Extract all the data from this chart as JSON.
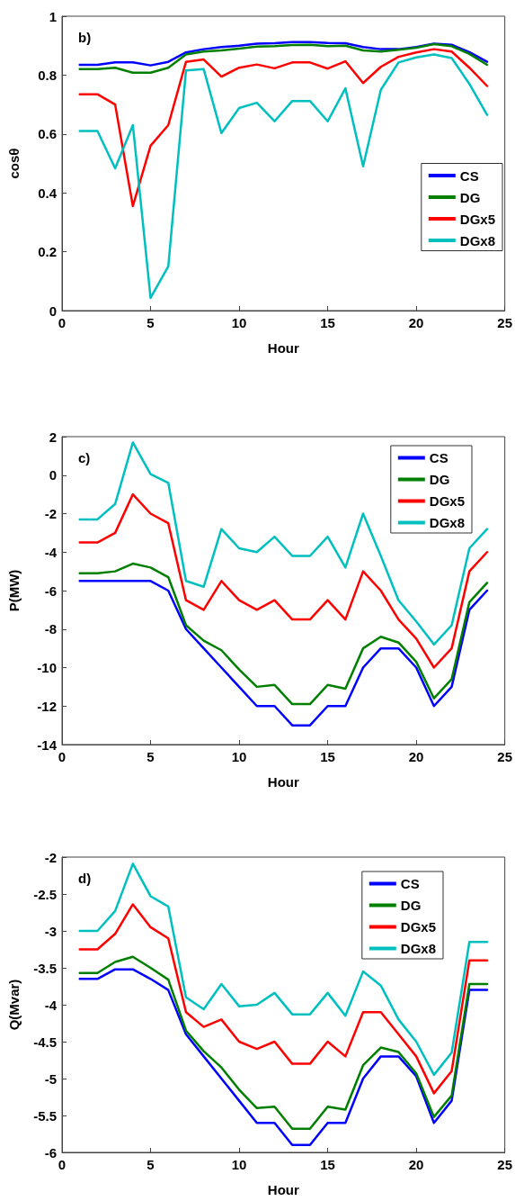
{
  "chart_data": [
    {
      "type": "line",
      "annotations": [
        "b)"
      ],
      "xlabel": "Hour",
      "ylabel": "cosθ",
      "x": [
        1,
        2,
        3,
        4,
        5,
        6,
        7,
        8,
        9,
        10,
        11,
        12,
        13,
        14,
        15,
        16,
        17,
        18,
        19,
        20,
        21,
        22,
        23,
        24
      ],
      "xlim": [
        0,
        25
      ],
      "xticks": [
        0,
        5,
        10,
        15,
        20,
        25
      ],
      "ylim": [
        0,
        1
      ],
      "yticks": [
        0,
        0.2,
        0.4,
        0.6,
        0.8,
        1
      ],
      "grid": false,
      "legend": "right",
      "marker": "none",
      "line_style": "solid",
      "series": [
        {
          "name": "CS",
          "color": "#0000ff",
          "values": [
            0.835,
            0.835,
            0.843,
            0.843,
            0.833,
            0.845,
            0.877,
            0.888,
            0.895,
            0.9,
            0.907,
            0.908,
            0.912,
            0.912,
            0.909,
            0.908,
            0.895,
            0.888,
            0.888,
            0.895,
            0.907,
            0.903,
            0.878,
            0.845
          ]
        },
        {
          "name": "DG",
          "color": "#007f00",
          "values": [
            0.82,
            0.82,
            0.825,
            0.808,
            0.808,
            0.825,
            0.87,
            0.88,
            0.884,
            0.89,
            0.897,
            0.898,
            0.902,
            0.903,
            0.898,
            0.9,
            0.884,
            0.88,
            0.886,
            0.893,
            0.905,
            0.898,
            0.872,
            0.835
          ]
        },
        {
          "name": "DGx5",
          "color": "#ff0000",
          "values": [
            0.735,
            0.735,
            0.7,
            0.355,
            0.56,
            0.63,
            0.845,
            0.853,
            0.795,
            0.825,
            0.836,
            0.823,
            0.843,
            0.843,
            0.822,
            0.847,
            0.773,
            0.828,
            0.862,
            0.877,
            0.888,
            0.88,
            0.825,
            0.763
          ]
        },
        {
          "name": "DGx8",
          "color": "#00bfbf",
          "values": [
            0.61,
            0.61,
            0.483,
            0.63,
            0.043,
            0.15,
            0.816,
            0.82,
            0.603,
            0.688,
            0.706,
            0.643,
            0.712,
            0.712,
            0.643,
            0.755,
            0.49,
            0.75,
            0.843,
            0.86,
            0.87,
            0.858,
            0.77,
            0.665
          ]
        }
      ]
    },
    {
      "type": "line",
      "annotations": [
        "c)"
      ],
      "xlabel": "Hour",
      "ylabel": "P(MW)",
      "x": [
        1,
        2,
        3,
        4,
        5,
        6,
        7,
        8,
        9,
        10,
        11,
        12,
        13,
        14,
        15,
        16,
        17,
        18,
        19,
        20,
        21,
        22,
        23,
        24
      ],
      "xlim": [
        0,
        25
      ],
      "xticks": [
        0,
        5,
        10,
        15,
        20,
        25
      ],
      "ylim": [
        -14,
        2
      ],
      "yticks": [
        -14,
        -12,
        -10,
        -8,
        -6,
        -4,
        -2,
        0,
        2
      ],
      "grid": false,
      "legend": "top right",
      "marker": "none",
      "line_style": "solid",
      "series": [
        {
          "name": "CS",
          "color": "#0000ff",
          "values": [
            -5.5,
            -5.5,
            -5.5,
            -5.5,
            -5.5,
            -6,
            -8,
            -9,
            -10,
            -11,
            -12,
            -12,
            -13,
            -13,
            -12,
            -12,
            -10,
            -9,
            -9,
            -10,
            -12,
            -11,
            -7,
            -6
          ]
        },
        {
          "name": "DG",
          "color": "#007f00",
          "values": [
            -5.1,
            -5.1,
            -5,
            -4.6,
            -4.8,
            -5.3,
            -7.8,
            -8.6,
            -9.1,
            -10.1,
            -11,
            -10.9,
            -11.9,
            -11.9,
            -10.9,
            -11.1,
            -9,
            -8.4,
            -8.7,
            -9.7,
            -11.6,
            -10.6,
            -6.6,
            -5.6
          ]
        },
        {
          "name": "DGx5",
          "color": "#ff0000",
          "values": [
            -3.5,
            -3.5,
            -3,
            -1,
            -2,
            -2.5,
            -6.5,
            -7,
            -5.5,
            -6.5,
            -7,
            -6.5,
            -7.5,
            -7.5,
            -6.5,
            -7.5,
            -5,
            -6,
            -7.5,
            -8.5,
            -10,
            -9,
            -5,
            -4
          ]
        },
        {
          "name": "DGx8",
          "color": "#00bfbf",
          "values": [
            -2.3,
            -2.3,
            -1.5,
            1.7,
            0.05,
            -0.4,
            -5.5,
            -5.8,
            -2.8,
            -3.8,
            -4,
            -3.2,
            -4.2,
            -4.2,
            -3.2,
            -4.8,
            -2,
            -4.2,
            -6.5,
            -7.6,
            -8.8,
            -7.8,
            -3.8,
            -2.8
          ]
        }
      ]
    },
    {
      "type": "line",
      "annotations": [
        "d)"
      ],
      "xlabel": "Hour",
      "ylabel": "Q(Mvar)",
      "x": [
        1,
        2,
        3,
        4,
        5,
        6,
        7,
        8,
        9,
        10,
        11,
        12,
        13,
        14,
        15,
        16,
        17,
        18,
        19,
        20,
        21,
        22,
        23,
        24
      ],
      "xlim": [
        0,
        25
      ],
      "xticks": [
        0,
        5,
        10,
        15,
        20,
        25
      ],
      "ylim": [
        -6,
        -2
      ],
      "yticks": [
        -6,
        -5.5,
        -5,
        -4.5,
        -4,
        -3.5,
        -3,
        -2.5,
        -2
      ],
      "grid": false,
      "legend": "top right",
      "marker": "none",
      "line_style": "solid",
      "series": [
        {
          "name": "CS",
          "color": "#0000ff",
          "values": [
            -3.65,
            -3.65,
            -3.52,
            -3.52,
            -3.65,
            -3.8,
            -4.4,
            -4.7,
            -5,
            -5.3,
            -5.6,
            -5.6,
            -5.9,
            -5.9,
            -5.6,
            -5.6,
            -5,
            -4.7,
            -4.7,
            -4.97,
            -5.6,
            -5.3,
            -3.8,
            -3.8
          ]
        },
        {
          "name": "DG",
          "color": "#007f00",
          "values": [
            -3.57,
            -3.57,
            -3.42,
            -3.35,
            -3.5,
            -3.66,
            -4.35,
            -4.63,
            -4.85,
            -5.15,
            -5.4,
            -5.38,
            -5.68,
            -5.68,
            -5.38,
            -5.42,
            -4.82,
            -4.58,
            -4.64,
            -4.93,
            -5.52,
            -5.23,
            -3.72,
            -3.72
          ]
        },
        {
          "name": "DGx5",
          "color": "#ff0000",
          "values": [
            -3.25,
            -3.25,
            -3.04,
            -2.64,
            -2.95,
            -3.1,
            -4.1,
            -4.3,
            -4.2,
            -4.5,
            -4.6,
            -4.5,
            -4.8,
            -4.8,
            -4.5,
            -4.7,
            -4.1,
            -4.1,
            -4.4,
            -4.7,
            -5.2,
            -4.9,
            -3.4,
            -3.4
          ]
        },
        {
          "name": "DGx8",
          "color": "#00bfbf",
          "values": [
            -3,
            -3,
            -2.73,
            -2.09,
            -2.53,
            -2.67,
            -3.9,
            -4.06,
            -3.72,
            -4.02,
            -4,
            -3.84,
            -4.13,
            -4.13,
            -3.84,
            -4.15,
            -3.55,
            -3.74,
            -4.2,
            -4.5,
            -4.95,
            -4.65,
            -3.15,
            -3.15
          ]
        }
      ]
    }
  ]
}
